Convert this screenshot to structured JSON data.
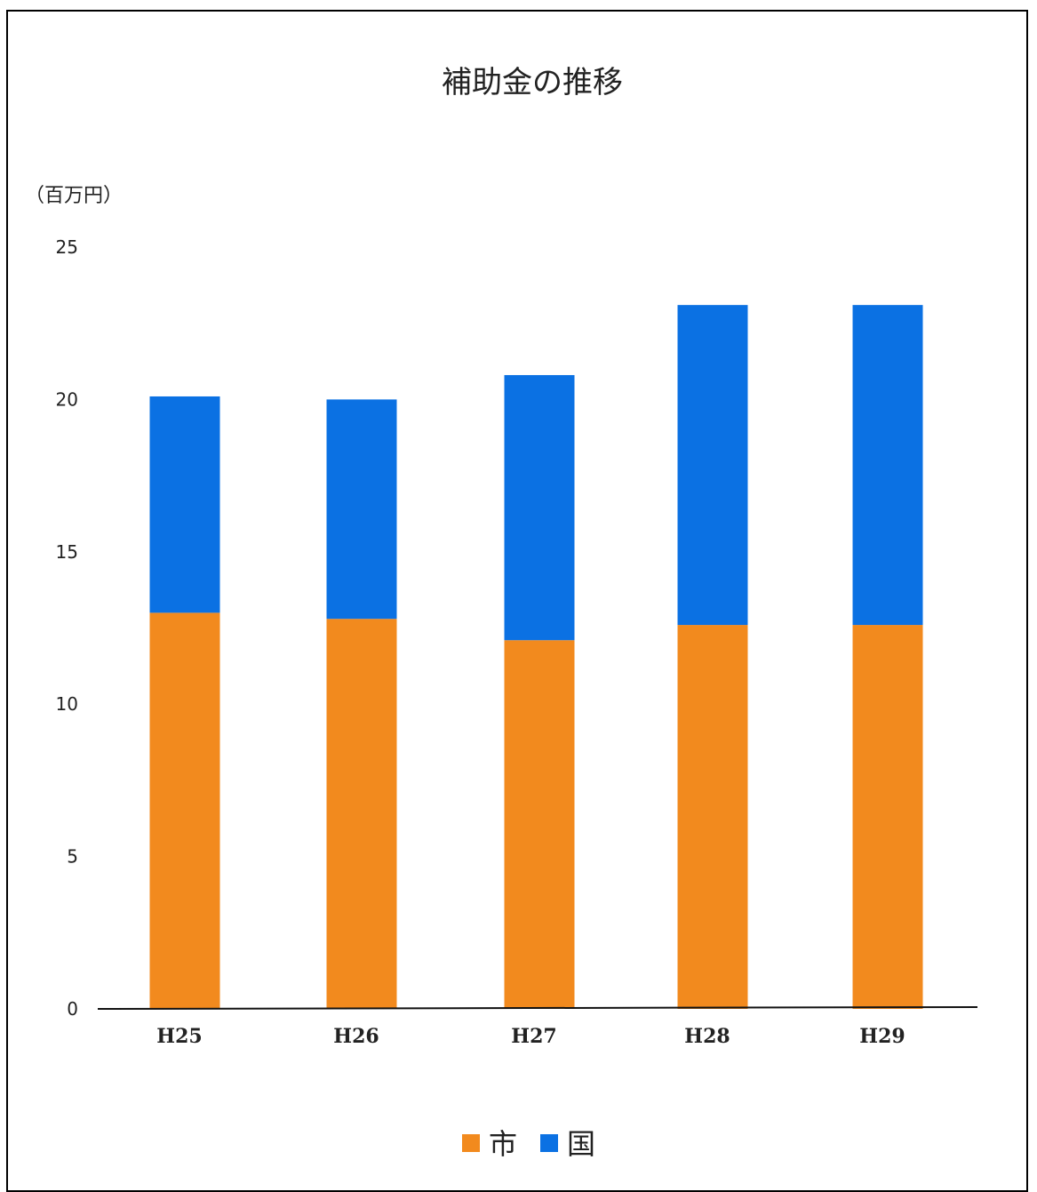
{
  "chart_data": {
    "type": "bar",
    "stacked": true,
    "title": "補助金の推移",
    "ylabel": "（百万円）",
    "xlabel": "",
    "categories": [
      "H25",
      "H26",
      "H27",
      "H28",
      "H29"
    ],
    "series": [
      {
        "name": "市",
        "color": "#f28a1e",
        "values": [
          13.0,
          12.8,
          12.1,
          12.6,
          12.6
        ]
      },
      {
        "name": "国",
        "color": "#0b71e3",
        "values": [
          7.1,
          7.2,
          8.7,
          10.5,
          10.5
        ]
      }
    ],
    "ylim": [
      0,
      25
    ],
    "yticks": [
      "0",
      "5",
      "10",
      "15",
      "20",
      "25"
    ],
    "grid": false,
    "legend_position": "bottom"
  }
}
